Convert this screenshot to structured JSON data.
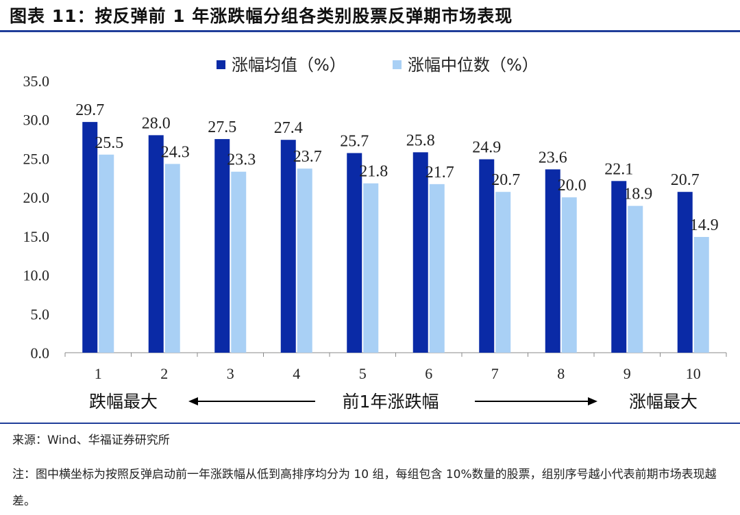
{
  "title": "图表 11：按反弹前 1 年涨跌幅分组各类别股票反弹期市场表现",
  "chart_data": {
    "type": "bar",
    "categories": [
      "1",
      "2",
      "3",
      "4",
      "5",
      "6",
      "7",
      "8",
      "9",
      "10"
    ],
    "series": [
      {
        "name": "涨幅均值（%）",
        "values": [
          29.7,
          28.0,
          27.5,
          27.4,
          25.7,
          25.8,
          24.9,
          23.6,
          22.1,
          20.7
        ],
        "color": "#0A2AA6"
      },
      {
        "name": "涨幅中位数（%）",
        "values": [
          25.5,
          24.3,
          23.3,
          23.7,
          21.8,
          21.7,
          20.7,
          20.0,
          18.9,
          14.9
        ],
        "color": "#A9D0F5"
      }
    ],
    "ylim": [
      0,
      35
    ],
    "yticks": [
      "0.0",
      "5.0",
      "10.0",
      "15.0",
      "20.0",
      "25.0",
      "30.0",
      "35.0"
    ],
    "legend_position": "top",
    "grid": false
  },
  "x_annotation": {
    "left": "跌幅最大",
    "center": "前1年涨跌幅",
    "right": "涨幅最大"
  },
  "source": "来源：Wind、华福证券研究所",
  "note": "注：图中横坐标为按照反弹启动前一年涨跌幅从低到高排序均分为 10 组，每组包含 10%数量的股票，组别序号越小代表前期市场表现越差。"
}
